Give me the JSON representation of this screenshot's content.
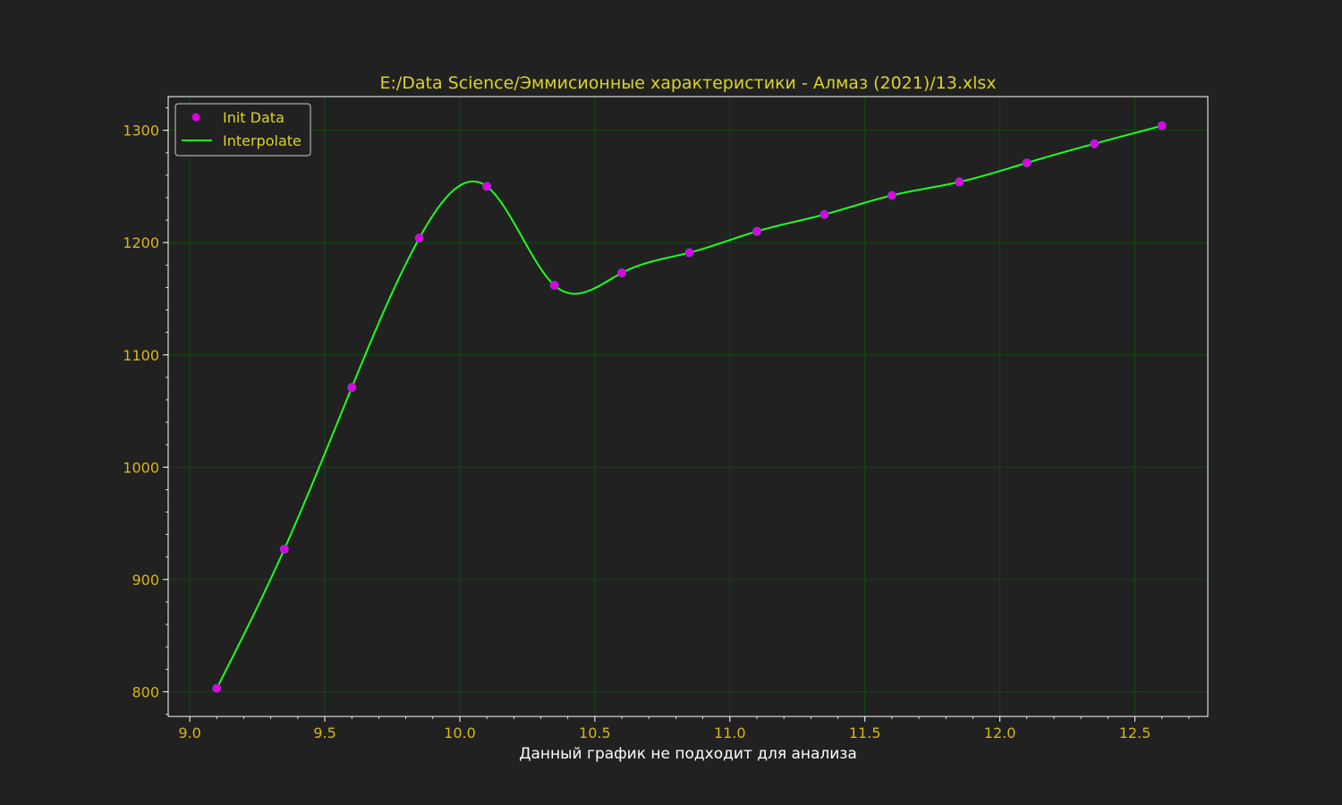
{
  "colors": {
    "background": "#212121",
    "frame": "#ffffff",
    "grid": "#0a4f0a",
    "tick_label": "#d7b51c",
    "title": "#d9d22c",
    "xlabel": "#ffffff",
    "legend_text": "#d9d22c",
    "points": "#e000e0",
    "line": "#1fff1f"
  },
  "chart_data": {
    "type": "line",
    "title": "E:/Data Science/Эммисионные характеристики - Алмаз (2021)/13.xlsx",
    "xlabel": "Данный график не подходит для анализа",
    "ylabel": "",
    "xlim": [
      8.92,
      12.77
    ],
    "ylim": [
      778,
      1330
    ],
    "xticks": [
      "9.0",
      "9.5",
      "10.0",
      "10.5",
      "11.0",
      "11.5",
      "12.0",
      "12.5"
    ],
    "yticks": [
      "800",
      "900",
      "1000",
      "1100",
      "1200",
      "1300"
    ],
    "grid": true,
    "legend_position": "top-left",
    "series": [
      {
        "name": "Init Data",
        "kind": "scatter",
        "x": [
          9.1,
          9.35,
          9.6,
          9.85,
          10.1,
          10.35,
          10.6,
          10.85,
          11.1,
          11.35,
          11.6,
          11.85,
          12.1,
          12.35,
          12.6
        ],
        "y": [
          803,
          927,
          1071,
          1204,
          1250,
          1162,
          1173,
          1191,
          1210,
          1225,
          1242,
          1254,
          1271,
          1288,
          1304
        ]
      },
      {
        "name": "Interpolate",
        "kind": "line",
        "x": [
          9.1,
          9.35,
          9.6,
          9.85,
          10.1,
          10.35,
          10.6,
          10.85,
          11.1,
          11.35,
          11.6,
          11.85,
          12.1,
          12.35,
          12.6
        ],
        "y": [
          803,
          927,
          1071,
          1204,
          1250,
          1162,
          1173,
          1191,
          1210,
          1225,
          1242,
          1254,
          1271,
          1288,
          1304
        ]
      }
    ]
  }
}
